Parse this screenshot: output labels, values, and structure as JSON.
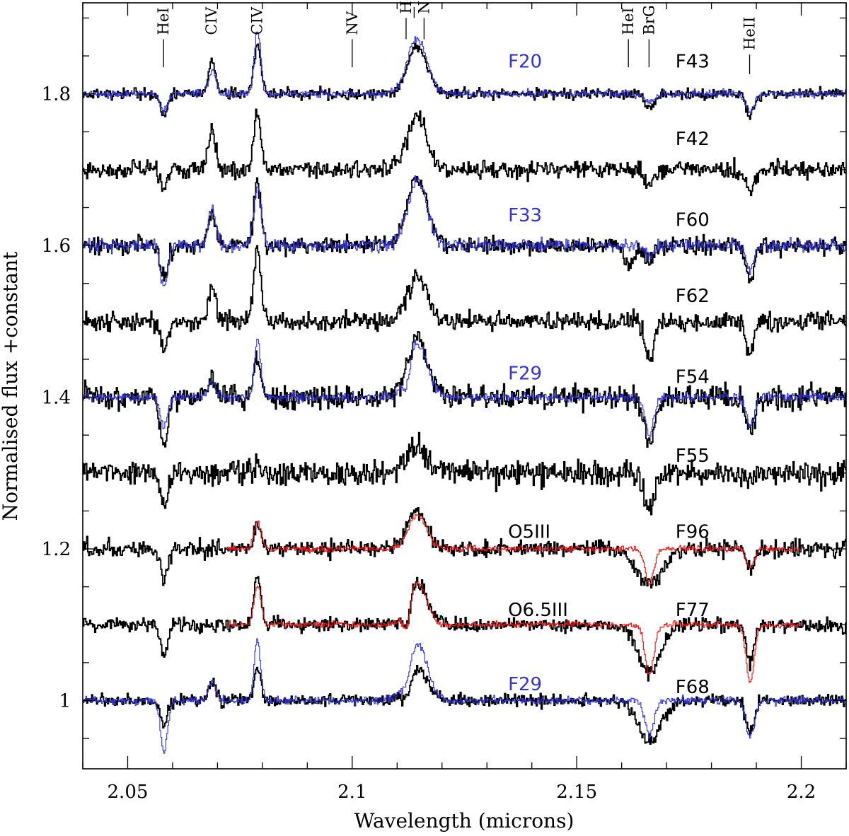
{
  "chart_data": {
    "type": "line",
    "xlabel": "Wavelength (microns)",
    "ylabel": "Normalised flux +constant",
    "xlim": [
      2.04,
      2.21
    ],
    "ylim": [
      0.91,
      1.92
    ],
    "x_ticks": [
      {
        "value": 2.05,
        "label": "2.05"
      },
      {
        "value": 2.1,
        "label": "2.1"
      },
      {
        "value": 2.15,
        "label": "2.15"
      },
      {
        "value": 2.2,
        "label": "2.2"
      }
    ],
    "y_ticks": [
      {
        "value": 1.0,
        "label": "1"
      },
      {
        "value": 1.2,
        "label": "1.2"
      },
      {
        "value": 1.4,
        "label": "1.4"
      },
      {
        "value": 1.6,
        "label": "1.6"
      },
      {
        "value": 1.8,
        "label": "1.8"
      }
    ],
    "colors": {
      "black": "#000000",
      "blue": "#3333dd",
      "red": "#ee1111"
    },
    "line_markers": [
      {
        "label": "HeI",
        "x": 2.058,
        "y_top": 1.872,
        "y_bottom": 1.835
      },
      {
        "label": "CIV",
        "x": 2.0687,
        "y_top": null,
        "y_bottom": null
      },
      {
        "label": "CIV",
        "x": 2.0788,
        "y_top": null,
        "y_bottom": null
      },
      {
        "label": "NV",
        "x": 2.1,
        "y_top": 1.872,
        "y_bottom": 1.835
      },
      {
        "label": "HeI",
        "x": 2.112,
        "y_top": 1.9,
        "y_bottom": 1.872
      },
      {
        "label": "NIII",
        "x": 2.116,
        "y_top": 1.9,
        "y_bottom": 1.872
      },
      {
        "label": "HeI",
        "x": 2.1615,
        "y_top": 1.872,
        "y_bottom": 1.835
      },
      {
        "label": "BrG",
        "x": 2.1661,
        "y_top": 1.872,
        "y_bottom": 1.835
      },
      {
        "label": "HeII",
        "x": 2.1885,
        "y_top": 1.852,
        "y_bottom": 1.826
      }
    ],
    "series": [
      {
        "name": "F43",
        "offset": 1.8,
        "color": "black",
        "noise": 0.007,
        "seed": 11,
        "xrange": [
          2.04,
          2.21
        ],
        "features": [
          [
            2.058,
            -0.03,
            0.0008
          ],
          [
            2.0687,
            0.045,
            0.0008
          ],
          [
            2.0788,
            0.062,
            0.0008
          ],
          [
            2.1144,
            0.063,
            0.0022
          ],
          [
            2.1661,
            -0.018,
            0.001
          ],
          [
            2.1885,
            -0.03,
            0.0009
          ]
        ]
      },
      {
        "name": "F20",
        "offset": 1.8,
        "color": "blue",
        "noise": 0.005,
        "seed": 12,
        "xrange": [
          2.04,
          2.21
        ],
        "features": [
          [
            2.058,
            -0.022,
            0.0008
          ],
          [
            2.0687,
            0.03,
            0.0008
          ],
          [
            2.0788,
            0.085,
            0.0007
          ],
          [
            2.1144,
            0.073,
            0.0022
          ],
          [
            2.1661,
            -0.012,
            0.001
          ],
          [
            2.1885,
            -0.025,
            0.0009
          ]
        ]
      },
      {
        "name": "F42",
        "offset": 1.7,
        "color": "black",
        "noise": 0.011,
        "seed": 21,
        "xrange": [
          2.04,
          2.21
        ],
        "features": [
          [
            2.058,
            -0.025,
            0.0008
          ],
          [
            2.0687,
            0.055,
            0.0008
          ],
          [
            2.0788,
            0.075,
            0.0008
          ],
          [
            2.1144,
            0.07,
            0.0022
          ],
          [
            2.1661,
            -0.025,
            0.001
          ],
          [
            2.1885,
            -0.028,
            0.0009
          ]
        ]
      },
      {
        "name": "F60",
        "offset": 1.6,
        "color": "black",
        "noise": 0.011,
        "seed": 31,
        "xrange": [
          2.04,
          2.21
        ],
        "features": [
          [
            2.058,
            -0.045,
            0.0008
          ],
          [
            2.0687,
            0.045,
            0.0008
          ],
          [
            2.0788,
            0.085,
            0.0008
          ],
          [
            2.1144,
            0.09,
            0.0022
          ],
          [
            2.1615,
            -0.028,
            0.001
          ],
          [
            2.1661,
            -0.02,
            0.001
          ],
          [
            2.1885,
            -0.05,
            0.0009
          ]
        ]
      },
      {
        "name": "F33",
        "offset": 1.6,
        "color": "blue",
        "noise": 0.008,
        "seed": 32,
        "xrange": [
          2.04,
          2.21
        ],
        "features": [
          [
            2.058,
            -0.055,
            0.0008
          ],
          [
            2.0687,
            0.05,
            0.0008
          ],
          [
            2.0788,
            0.075,
            0.0008
          ],
          [
            2.1144,
            0.085,
            0.0022
          ],
          [
            2.1661,
            -0.015,
            0.001
          ],
          [
            2.1885,
            -0.035,
            0.0009
          ]
        ]
      },
      {
        "name": "F62",
        "offset": 1.5,
        "color": "black",
        "noise": 0.012,
        "seed": 41,
        "xrange": [
          2.04,
          2.21
        ],
        "features": [
          [
            2.058,
            -0.035,
            0.0008
          ],
          [
            2.0687,
            0.045,
            0.0008
          ],
          [
            2.0788,
            0.095,
            0.0008
          ],
          [
            2.1144,
            0.06,
            0.0022
          ],
          [
            2.1661,
            -0.05,
            0.001
          ],
          [
            2.1885,
            -0.045,
            0.0009
          ]
        ]
      },
      {
        "name": "F54",
        "offset": 1.4,
        "color": "black",
        "noise": 0.015,
        "seed": 51,
        "xrange": [
          2.04,
          2.21
        ],
        "features": [
          [
            2.058,
            -0.065,
            0.0009
          ],
          [
            2.0687,
            0.03,
            0.0008
          ],
          [
            2.0788,
            0.05,
            0.0008
          ],
          [
            2.1144,
            0.075,
            0.0022
          ],
          [
            2.1661,
            -0.06,
            0.0012
          ],
          [
            2.1885,
            -0.05,
            0.0009
          ]
        ]
      },
      {
        "name": "F29",
        "offset": 1.4,
        "color": "blue",
        "noise": 0.006,
        "seed": 52,
        "xrange": [
          2.04,
          2.21
        ],
        "features": [
          [
            2.058,
            -0.04,
            0.0008
          ],
          [
            2.0687,
            0.02,
            0.0008
          ],
          [
            2.0788,
            0.075,
            0.0007
          ],
          [
            2.112,
            -0.025,
            0.0008
          ],
          [
            2.1144,
            0.07,
            0.0022
          ],
          [
            2.1661,
            -0.05,
            0.001
          ],
          [
            2.1885,
            -0.035,
            0.0009
          ]
        ]
      },
      {
        "name": "F55",
        "offset": 1.3,
        "color": "black",
        "noise": 0.016,
        "seed": 61,
        "xrange": [
          2.04,
          2.21
        ],
        "features": [
          [
            2.058,
            -0.045,
            0.0009
          ],
          [
            2.0788,
            0.02,
            0.0008
          ],
          [
            2.1144,
            0.035,
            0.0022
          ],
          [
            2.1661,
            -0.05,
            0.0012
          ],
          [
            2.1885,
            -0.02,
            0.0009
          ]
        ]
      },
      {
        "name": "F96",
        "offset": 1.2,
        "color": "black",
        "noise": 0.011,
        "seed": 71,
        "xrange": [
          2.04,
          2.21
        ],
        "features": [
          [
            2.058,
            -0.035,
            0.0008
          ],
          [
            2.0788,
            0.03,
            0.0008
          ],
          [
            2.1144,
            0.05,
            0.0022
          ],
          [
            2.1661,
            -0.045,
            0.003
          ],
          [
            2.1885,
            -0.025,
            0.0009
          ]
        ]
      },
      {
        "name": "O5III",
        "offset": 1.2,
        "color": "red",
        "noise": 0.004,
        "seed": 72,
        "xrange": [
          2.072,
          2.2
        ],
        "features": [
          [
            2.0788,
            0.035,
            0.0008
          ],
          [
            2.1144,
            0.045,
            0.002
          ],
          [
            2.1661,
            -0.045,
            0.001
          ],
          [
            2.1885,
            -0.025,
            0.0009
          ]
        ]
      },
      {
        "name": "F77",
        "offset": 1.1,
        "color": "black",
        "noise": 0.009,
        "seed": 81,
        "xrange": [
          2.04,
          2.21
        ],
        "features": [
          [
            2.058,
            -0.04,
            0.0008
          ],
          [
            2.0788,
            0.065,
            0.0008
          ],
          [
            2.112,
            -0.03,
            0.0008
          ],
          [
            2.1144,
            0.055,
            0.0022
          ],
          [
            2.1661,
            -0.065,
            0.0025
          ],
          [
            2.1885,
            -0.05,
            0.0009
          ]
        ]
      },
      {
        "name": "O6.5III",
        "offset": 1.1,
        "color": "red",
        "noise": 0.004,
        "seed": 82,
        "xrange": [
          2.072,
          2.2
        ],
        "features": [
          [
            2.0788,
            0.05,
            0.0008
          ],
          [
            2.112,
            -0.03,
            0.0007
          ],
          [
            2.1144,
            0.055,
            0.002
          ],
          [
            2.1661,
            -0.065,
            0.001
          ],
          [
            2.1885,
            -0.075,
            0.0009
          ]
        ]
      },
      {
        "name": "F68",
        "offset": 1.0,
        "color": "black",
        "noise": 0.008,
        "seed": 91,
        "xrange": [
          2.04,
          2.21
        ],
        "features": [
          [
            2.058,
            -0.03,
            0.0008
          ],
          [
            2.0687,
            0.025,
            0.0008
          ],
          [
            2.0788,
            0.04,
            0.0008
          ],
          [
            2.112,
            -0.02,
            0.0008
          ],
          [
            2.1144,
            0.04,
            0.0022
          ],
          [
            2.1661,
            -0.055,
            0.0025
          ],
          [
            2.1885,
            -0.04,
            0.0009
          ]
        ]
      },
      {
        "name": "F29",
        "offset": 1.0,
        "color": "blue",
        "noise": 0.005,
        "seed": 92,
        "xrange": [
          2.04,
          2.21
        ],
        "features": [
          [
            2.058,
            -0.065,
            0.0008
          ],
          [
            2.0687,
            0.025,
            0.0008
          ],
          [
            2.0788,
            0.08,
            0.0007
          ],
          [
            2.112,
            -0.02,
            0.0008
          ],
          [
            2.1144,
            0.075,
            0.0022
          ],
          [
            2.1661,
            -0.045,
            0.001
          ],
          [
            2.1885,
            -0.05,
            0.0009
          ]
        ]
      }
    ],
    "labels": [
      {
        "text": "F20",
        "color": "blue",
        "x": 2.1347,
        "y": 1.843
      },
      {
        "text": "F43",
        "color": "black",
        "x": 2.172,
        "y": 1.843
      },
      {
        "text": "F42",
        "color": "black",
        "x": 2.172,
        "y": 1.741
      },
      {
        "text": "F33",
        "color": "blue",
        "x": 2.1347,
        "y": 1.64
      },
      {
        "text": "F60",
        "color": "black",
        "x": 2.172,
        "y": 1.634
      },
      {
        "text": "F62",
        "color": "black",
        "x": 2.172,
        "y": 1.534
      },
      {
        "text": "F29",
        "color": "blue",
        "x": 2.1347,
        "y": 1.432
      },
      {
        "text": "F54",
        "color": "black",
        "x": 2.172,
        "y": 1.427
      },
      {
        "text": "F55",
        "color": "black",
        "x": 2.172,
        "y": 1.323
      },
      {
        "text": "O5III",
        "color": "black",
        "x": 2.1347,
        "y": 1.223
      },
      {
        "text": "F96",
        "color": "black",
        "x": 2.172,
        "y": 1.223
      },
      {
        "text": "O6.5III",
        "color": "black",
        "x": 2.1347,
        "y": 1.12
      },
      {
        "text": "F77",
        "color": "black",
        "x": 2.172,
        "y": 1.12
      },
      {
        "text": "F29",
        "color": "blue",
        "x": 2.1347,
        "y": 1.022
      },
      {
        "text": "F68",
        "color": "black",
        "x": 2.172,
        "y": 1.018
      }
    ]
  }
}
